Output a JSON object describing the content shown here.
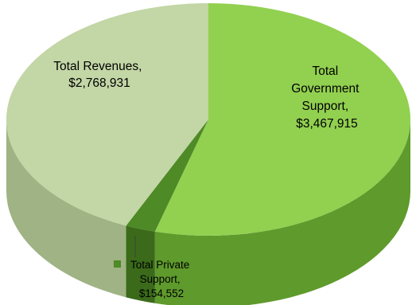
{
  "chart_data": {
    "type": "pie",
    "style": "3d",
    "slices": [
      {
        "label_lines": [
          "Total Revenues,",
          "$2,768,931"
        ],
        "value": 2768931,
        "color": "#c3d6a6",
        "side_color": "#9fb384"
      },
      {
        "label_lines": [
          "Total",
          "Government",
          "Support,",
          "$3,467,915"
        ],
        "value": 3467915,
        "color": "#92d050",
        "side_color": "#5f9a2c"
      },
      {
        "label_lines": [
          "Total Private",
          "Support,",
          "$154,552"
        ],
        "value": 154552,
        "color": "#4e8a25",
        "side_color": "#3a6a1a"
      }
    ]
  }
}
